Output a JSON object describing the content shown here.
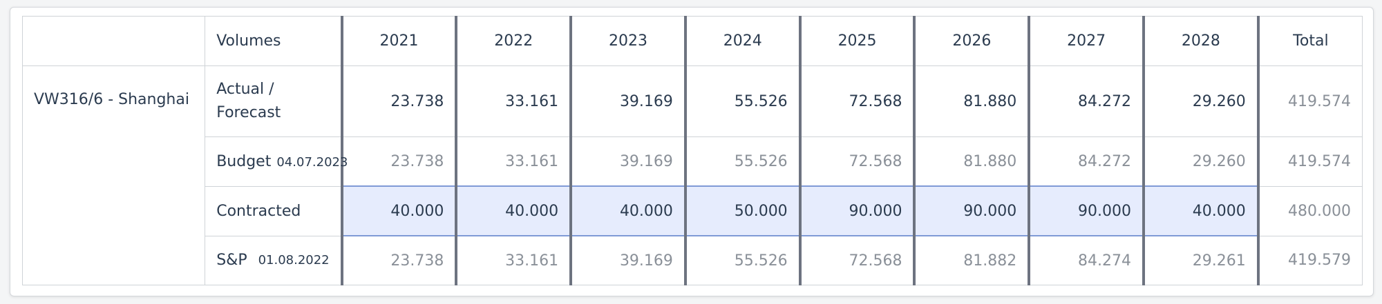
{
  "header": {
    "volumes_label": "Volumes",
    "years": [
      "2021",
      "2022",
      "2023",
      "2024",
      "2025",
      "2026",
      "2027",
      "2028"
    ],
    "total_label": "Total"
  },
  "project": {
    "name": "VW316/6 - Shanghai"
  },
  "rows": {
    "actual": {
      "label_line1": "Actual /",
      "label_line2": "Forecast",
      "values": [
        "23.738",
        "33.161",
        "39.169",
        "55.526",
        "72.568",
        "81.880",
        "84.272",
        "29.260"
      ],
      "total": "419.574"
    },
    "budget": {
      "label": "Budget",
      "date": "04.07.2023",
      "values": [
        "23.738",
        "33.161",
        "39.169",
        "55.526",
        "72.568",
        "81.880",
        "84.272",
        "29.260"
      ],
      "total": "419.574"
    },
    "contracted": {
      "label": "Contracted",
      "values": [
        "40.000",
        "40.000",
        "40.000",
        "50.000",
        "90.000",
        "90.000",
        "90.000",
        "40.000"
      ],
      "total": "480.000"
    },
    "sp": {
      "label": "S&P",
      "date": "01.08.2022",
      "values": [
        "23.738",
        "33.161",
        "39.169",
        "55.526",
        "72.568",
        "81.882",
        "84.274",
        "29.261"
      ],
      "total": "419.579"
    }
  },
  "colors": {
    "highlight_row": "#e6ecfd",
    "text_dark": "#2b3b4f",
    "text_muted": "#8a9098",
    "column_divider": "#6d7380"
  }
}
